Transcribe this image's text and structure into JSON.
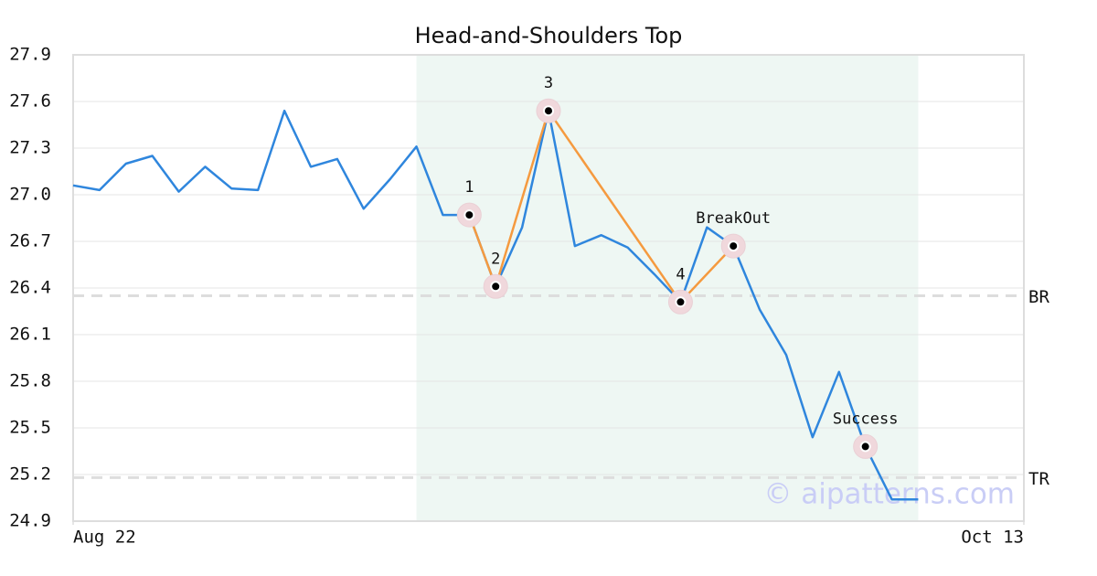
{
  "chart_data": {
    "type": "line",
    "title": "Head-and-Shoulders Top",
    "x": [
      0,
      1,
      2,
      3,
      4,
      5,
      6,
      7,
      8,
      9,
      10,
      11,
      12,
      13,
      14,
      15,
      16,
      17,
      18,
      19,
      20,
      21,
      22,
      23,
      24,
      25,
      26,
      27,
      28,
      29,
      30,
      31,
      32
    ],
    "series": [
      {
        "color": "#2f86dd",
        "values": [
          27.06,
          27.03,
          27.2,
          27.25,
          27.02,
          27.18,
          27.04,
          27.03,
          27.54,
          27.18,
          27.23,
          26.91,
          27.1,
          27.31,
          26.87,
          26.87,
          26.41,
          26.79,
          27.54,
          26.67,
          26.74,
          26.66,
          26.49,
          26.31,
          26.79,
          26.67,
          26.26,
          25.97,
          25.44,
          25.86,
          25.38,
          25.04,
          25.04
        ]
      }
    ],
    "xlim": [
      0,
      36
    ],
    "xticks": [
      {
        "value": 0,
        "label": "Aug 22"
      },
      {
        "value": 36,
        "label": "Oct 13"
      }
    ],
    "ylim": [
      24.9,
      27.9
    ],
    "yticks": [
      24.9,
      25.2,
      25.5,
      25.8,
      26.1,
      26.4,
      26.7,
      {
        "value": 27,
        "label": "27.0"
      },
      27.3,
      27.6,
      27.9
    ],
    "grid": true,
    "highlight_xlim": [
      13,
      32
    ],
    "highlight_color": "#eef7f3",
    "pattern_line": {
      "color": "#f59a3f",
      "x": [
        15,
        16,
        18,
        23,
        25
      ],
      "y": [
        26.87,
        26.41,
        27.54,
        26.31,
        26.67
      ]
    },
    "annotations": [
      {
        "text": "1",
        "x": 15,
        "y": 26.87
      },
      {
        "text": "2",
        "x": 16,
        "y": 26.41
      },
      {
        "text": "3",
        "x": 18,
        "y": 27.54
      },
      {
        "text": "4",
        "x": 23,
        "y": 26.31
      },
      {
        "text": "BreakOut",
        "x": 25,
        "y": 26.67
      },
      {
        "text": "Success",
        "x": 30,
        "y": 25.38
      }
    ],
    "levels": [
      {
        "label": "BR",
        "value": 26.35
      },
      {
        "label": "TR",
        "value": 25.18
      }
    ],
    "watermark": "© aipatterns.com"
  }
}
